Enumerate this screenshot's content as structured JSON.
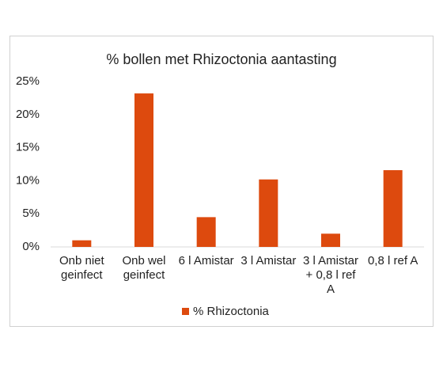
{
  "chart_data": {
    "type": "bar",
    "title": "% bollen met Rhizoctonia aantasting",
    "categories": [
      "Onb niet geinfect",
      "Onb wel geinfect",
      "6 l Amistar",
      "3 l Amistar",
      "3 l Amistar + 0,8 l ref A",
      "0,8 l ref A"
    ],
    "series": [
      {
        "name": "% Rhizoctonia",
        "color": "#dd4a0e",
        "values": [
          1,
          23.2,
          4.5,
          10.2,
          2,
          11.6
        ]
      }
    ],
    "ylim": [
      0,
      25
    ],
    "yticks": [
      {
        "value": 0,
        "label": "0%"
      },
      {
        "value": 5,
        "label": "5%"
      },
      {
        "value": 10,
        "label": "10%"
      },
      {
        "value": 15,
        "label": "15%"
      },
      {
        "value": 20,
        "label": "20%"
      },
      {
        "value": 25,
        "label": "25%"
      }
    ],
    "grid": false,
    "legend": "bottom"
  }
}
